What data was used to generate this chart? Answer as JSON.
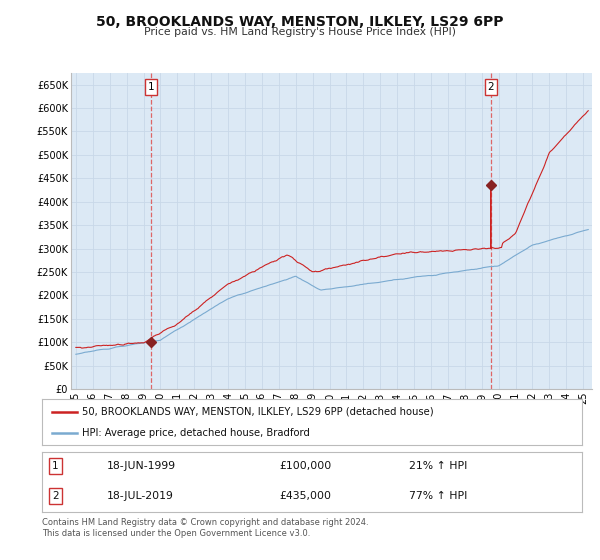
{
  "title": "50, BROOKLANDS WAY, MENSTON, ILKLEY, LS29 6PP",
  "subtitle": "Price paid vs. HM Land Registry's House Price Index (HPI)",
  "background_color": "#ffffff",
  "plot_bg_color": "#dce9f5",
  "grid_color": "#c8d8e8",
  "ylim": [
    0,
    675000
  ],
  "yticks": [
    0,
    50000,
    100000,
    150000,
    200000,
    250000,
    300000,
    350000,
    400000,
    450000,
    500000,
    550000,
    600000,
    650000
  ],
  "ytick_labels": [
    "£0",
    "£50K",
    "£100K",
    "£150K",
    "£200K",
    "£250K",
    "£300K",
    "£350K",
    "£400K",
    "£450K",
    "£500K",
    "£550K",
    "£600K",
    "£650K"
  ],
  "xlim_start": 1994.7,
  "xlim_end": 2025.5,
  "sale1_date": 1999.46,
  "sale1_price": 100000,
  "sale1_label": "1",
  "sale1_text": "18-JUN-1999",
  "sale1_amount": "£100,000",
  "sale1_hpi": "21% ↑ HPI",
  "sale2_date": 2019.54,
  "sale2_price": 435000,
  "sale2_label": "2",
  "sale2_text": "18-JUL-2019",
  "sale2_amount": "£435,000",
  "sale2_hpi": "77% ↑ HPI",
  "legend_line1": "50, BROOKLANDS WAY, MENSTON, ILKLEY, LS29 6PP (detached house)",
  "legend_line2": "HPI: Average price, detached house, Bradford",
  "footer1": "Contains HM Land Registry data © Crown copyright and database right 2024.",
  "footer2": "This data is licensed under the Open Government Licence v3.0.",
  "hpi_color": "#7aaad0",
  "price_color": "#cc2222",
  "sale_dot_color": "#882222",
  "vline_color": "#dd6666"
}
